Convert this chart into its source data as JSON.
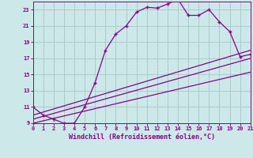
{
  "xlabel": "Windchill (Refroidissement éolien,°C)",
  "bg_color": "#cce8e8",
  "line_color": "#880088",
  "grid_color": "#aacccc",
  "x_ticks": [
    0,
    1,
    2,
    3,
    4,
    5,
    6,
    7,
    8,
    9,
    10,
    11,
    12,
    13,
    14,
    15,
    16,
    17,
    18,
    19,
    20,
    21
  ],
  "y_ticks": [
    9,
    11,
    13,
    15,
    17,
    19,
    21,
    23
  ],
  "xlim": [
    0,
    21
  ],
  "ylim": [
    9,
    24
  ],
  "line1_x": [
    0,
    1,
    2,
    3,
    4,
    5,
    6,
    7,
    8,
    9,
    10,
    11,
    12,
    13,
    14,
    15,
    16,
    17,
    18,
    19,
    20,
    21
  ],
  "line1_y": [
    11,
    10,
    9.5,
    9,
    9,
    11,
    14,
    18,
    20,
    21,
    22.7,
    23.3,
    23.2,
    23.7,
    24.3,
    22.3,
    22.3,
    23,
    21.5,
    20.3,
    17.2,
    17.5
  ],
  "line2_x": [
    0,
    21
  ],
  "line2_y": [
    10,
    18
  ],
  "line3_x": [
    0,
    21
  ],
  "line3_y": [
    9.5,
    17
  ],
  "line4_x": [
    0,
    21
  ],
  "line4_y": [
    9,
    15.3
  ]
}
